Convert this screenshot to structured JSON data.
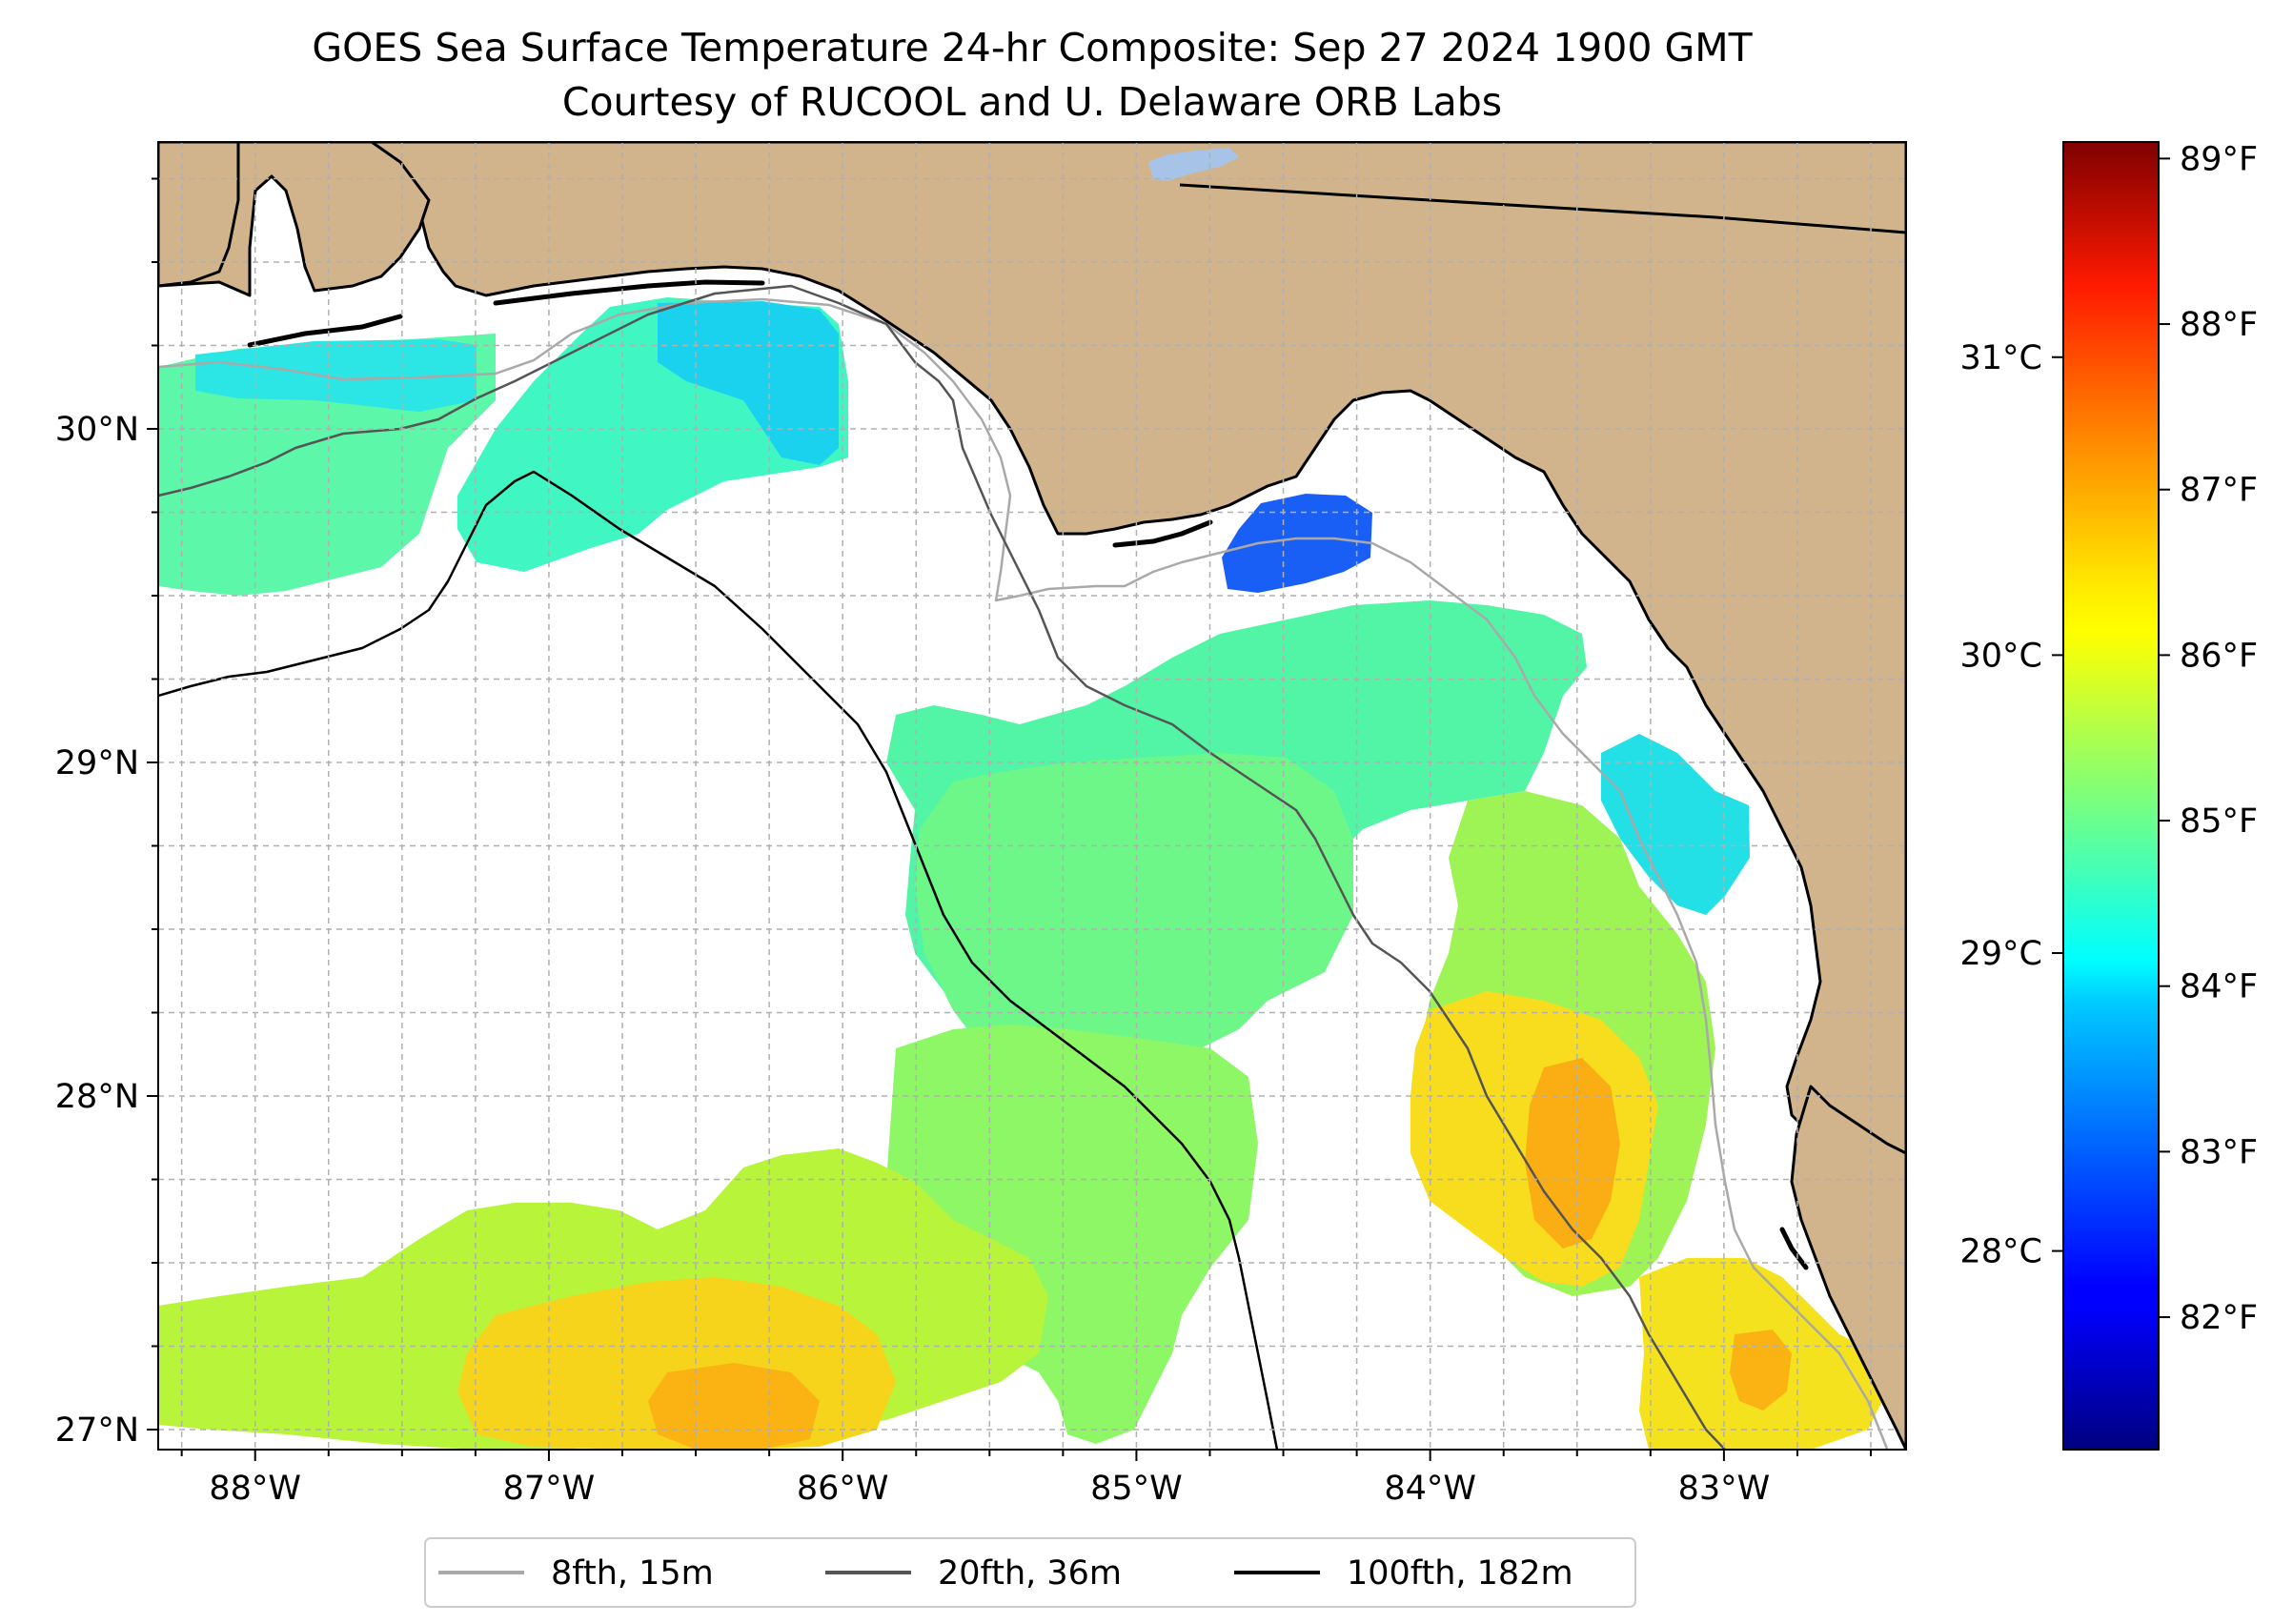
{
  "title": "GOES Sea Surface Temperature 24-hr Composite: Sep 27 2024 1900 GMT",
  "subtitle": "Courtesy of RUCOOL and U. Delaware ORB Labs",
  "map": {
    "lon_range": [
      -88.33,
      -82.38
    ],
    "lat_range": [
      26.94,
      30.86
    ],
    "lon_ticks": [
      {
        "value": -88,
        "label": "88°W"
      },
      {
        "value": -87,
        "label": "87°W"
      },
      {
        "value": -86,
        "label": "86°W"
      },
      {
        "value": -85,
        "label": "85°W"
      },
      {
        "value": -84,
        "label": "84°W"
      },
      {
        "value": -83,
        "label": "83°W"
      }
    ],
    "lat_ticks": [
      {
        "value": 27,
        "label": "27°N"
      },
      {
        "value": 28,
        "label": "28°N"
      },
      {
        "value": 29,
        "label": "29°N"
      },
      {
        "value": 30,
        "label": "30°N"
      }
    ],
    "grid_step_deg": 0.25,
    "land_color": "#d2b48c",
    "no_data_color": "#ffffff"
  },
  "colorbar": {
    "colormap": "jet",
    "range_f": [
      81.2,
      89.1
    ],
    "f_ticks": [
      {
        "value": 82,
        "label": "82°F"
      },
      {
        "value": 83,
        "label": "83°F"
      },
      {
        "value": 84,
        "label": "84°F"
      },
      {
        "value": 85,
        "label": "85°F"
      },
      {
        "value": 86,
        "label": "86°F"
      },
      {
        "value": 87,
        "label": "87°F"
      },
      {
        "value": 88,
        "label": "88°F"
      },
      {
        "value": 89,
        "label": "89°F"
      }
    ],
    "c_ticks": [
      {
        "value": 28,
        "label": "28°C"
      },
      {
        "value": 29,
        "label": "29°C"
      },
      {
        "value": 30,
        "label": "30°C"
      },
      {
        "value": 31,
        "label": "31°C"
      }
    ]
  },
  "legend": [
    {
      "label": "8fth, 15m",
      "color": "#a9a9a9"
    },
    {
      "label": "20fth, 36m",
      "color": "#555555"
    },
    {
      "label": "100fth, 182m",
      "color": "#000000"
    }
  ]
}
